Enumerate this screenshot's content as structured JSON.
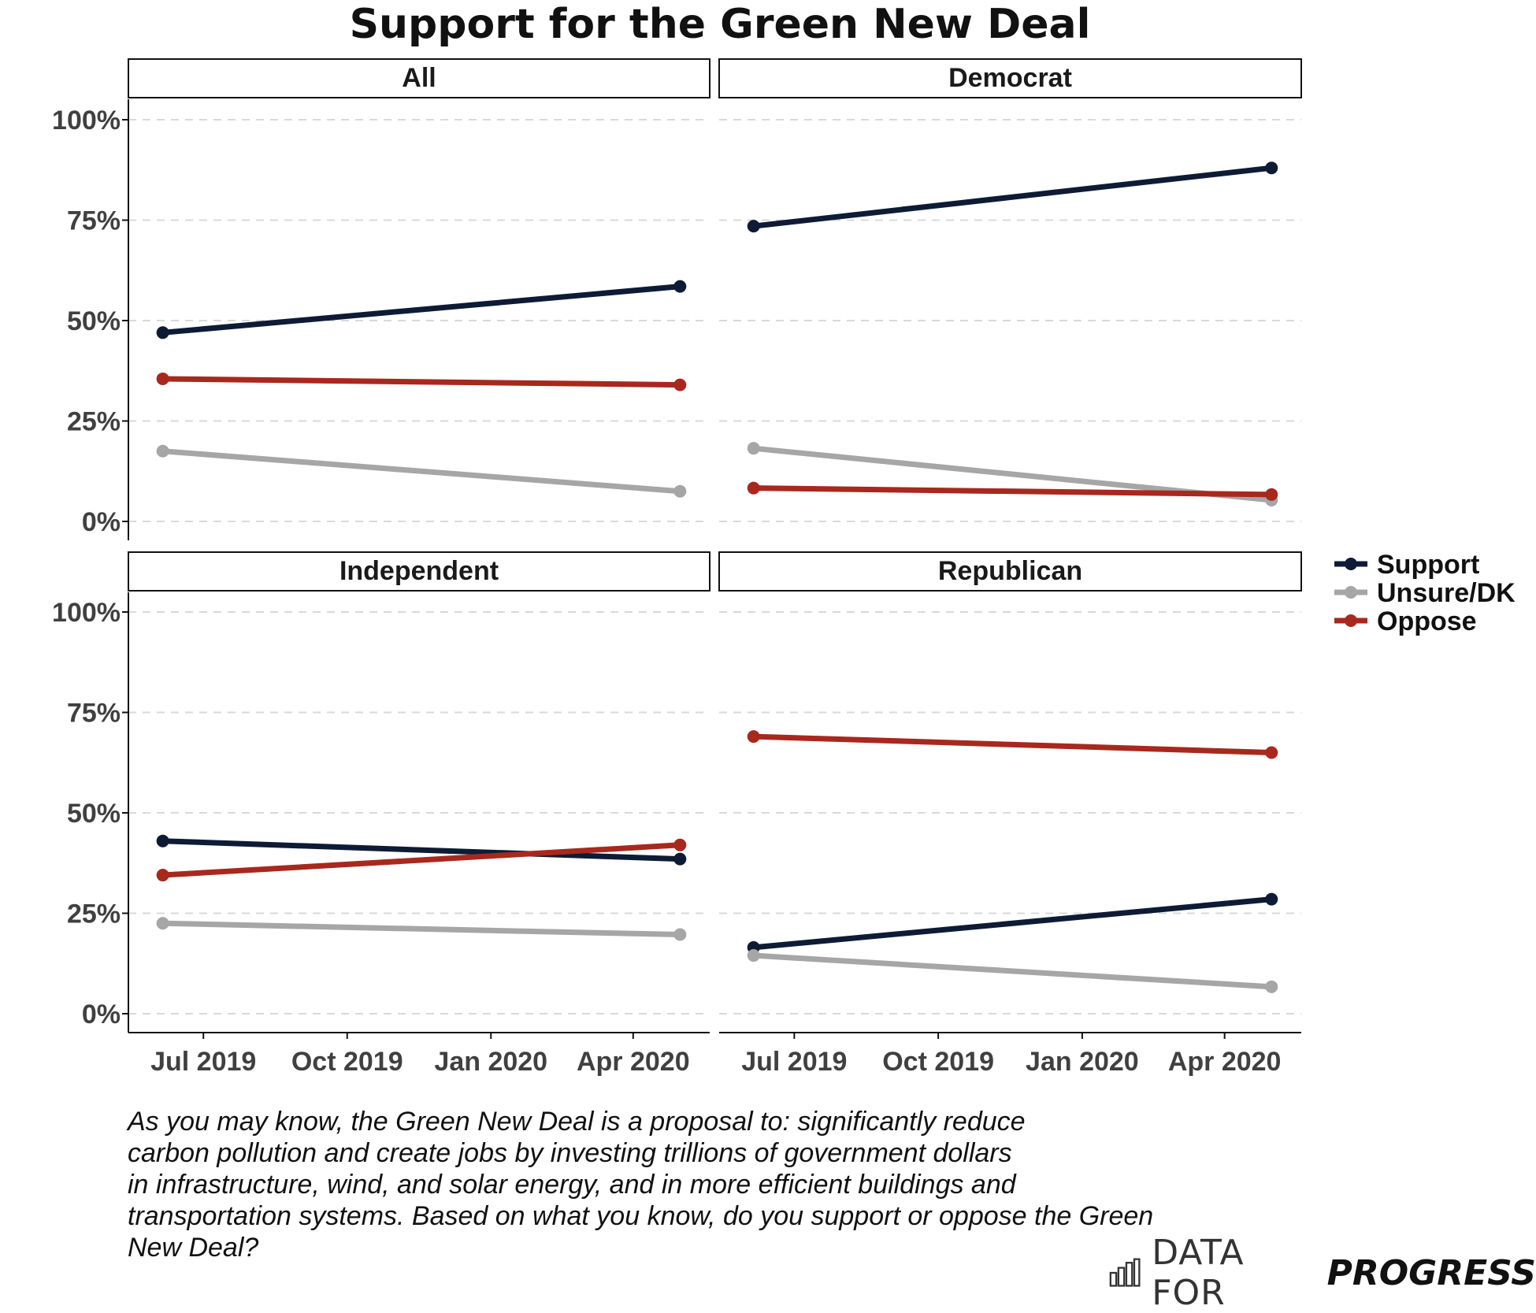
{
  "title": "Support for the Green New Deal",
  "chart_data": {
    "type": "line",
    "title": "Support for the Green New Deal",
    "xlabel": "",
    "ylabel": "",
    "ylim": [
      0,
      1.05
    ],
    "y_ticks": [
      0,
      0.25,
      0.5,
      0.75,
      1.0
    ],
    "y_tick_labels": [
      "0%",
      "25%",
      "50%",
      "75%",
      "100%"
    ],
    "x_ticks": [
      "2019-07-01",
      "2019-10-01",
      "2020-01-01",
      "2020-04-01"
    ],
    "x_tick_labels": [
      "Jul 2019",
      "Oct 2019",
      "Jan 2020",
      "Apr 2020"
    ],
    "xlim": [
      "2019-05-14",
      "2020-05-20"
    ],
    "grid": "horizontal dashed",
    "legend_position": "right",
    "x": [
      "2019-06-05",
      "2020-05-01"
    ],
    "panels": [
      {
        "label": "All",
        "series": [
          {
            "name": "Support",
            "values": [
              0.47,
              0.585
            ]
          },
          {
            "name": "Unsure/DK",
            "values": [
              0.175,
              0.075
            ]
          },
          {
            "name": "Oppose",
            "values": [
              0.355,
              0.34
            ]
          }
        ]
      },
      {
        "label": "Democrat",
        "series": [
          {
            "name": "Support",
            "values": [
              0.735,
              0.88
            ]
          },
          {
            "name": "Unsure/DK",
            "values": [
              0.182,
              0.053
            ]
          },
          {
            "name": "Oppose",
            "values": [
              0.083,
              0.067
            ]
          }
        ]
      },
      {
        "label": "Independent",
        "series": [
          {
            "name": "Support",
            "values": [
              0.43,
              0.385
            ]
          },
          {
            "name": "Unsure/DK",
            "values": [
              0.225,
              0.197
            ]
          },
          {
            "name": "Oppose",
            "values": [
              0.345,
              0.42
            ]
          }
        ]
      },
      {
        "label": "Republican",
        "series": [
          {
            "name": "Support",
            "values": [
              0.165,
              0.285
            ]
          },
          {
            "name": "Unsure/DK",
            "values": [
              0.145,
              0.067
            ]
          },
          {
            "name": "Oppose",
            "values": [
              0.69,
              0.65
            ]
          }
        ]
      }
    ],
    "legend": [
      {
        "name": "Support",
        "color": "#0d1b35"
      },
      {
        "name": "Unsure/DK",
        "color": "#a6a6a6"
      },
      {
        "name": "Oppose",
        "color": "#a8281e"
      }
    ]
  },
  "caption_lines": [
    "As you may know, the Green New Deal is a proposal to: significantly reduce",
    "carbon pollution and create jobs by investing trillions of government dollars",
    "in infrastructure, wind, and solar energy, and in more efficient buildings and",
    "transportation systems. Based on what you know, do you support or oppose the Green",
    "New Deal?"
  ],
  "brand": {
    "light": "DATA FOR",
    "bold": "PROGRESS"
  }
}
